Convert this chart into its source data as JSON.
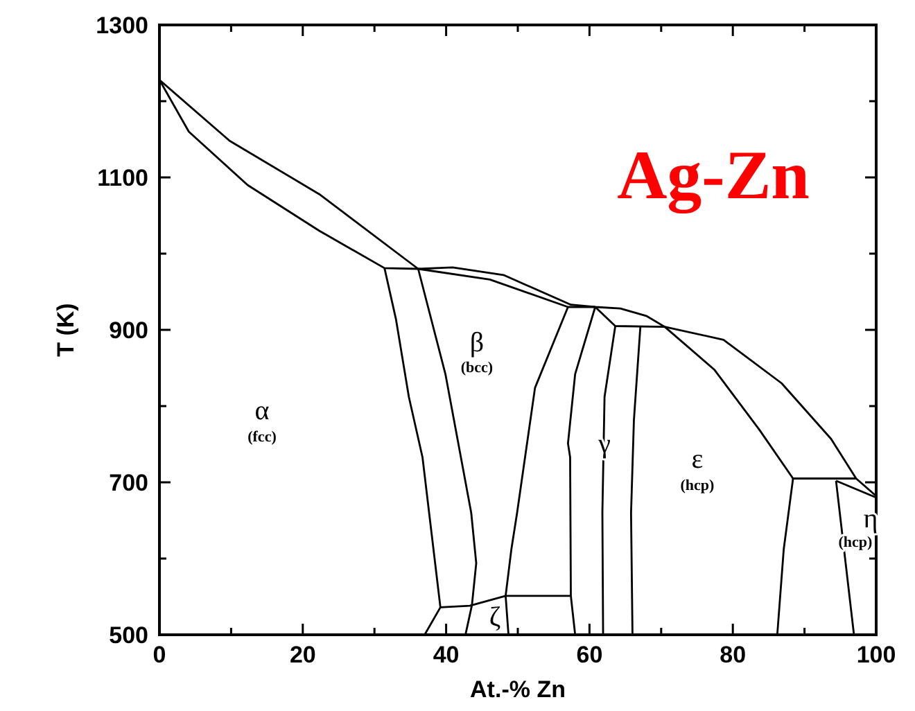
{
  "chart_data": {
    "type": "line",
    "title": "Ag-Zn",
    "xlabel": "At.-% Zn",
    "ylabel": "T (K)",
    "xlim": [
      0,
      100
    ],
    "ylim": [
      500,
      1300
    ],
    "xticks": [
      0,
      {
        "value": 10,
        "label": null
      },
      20,
      {
        "value": 30,
        "label": null
      },
      40,
      {
        "value": 50,
        "label": null
      },
      60,
      {
        "value": 70,
        "label": null
      },
      80,
      {
        "value": 90,
        "label": null
      },
      100
    ],
    "yticks": [
      500,
      {
        "value": 600,
        "label": null
      },
      700,
      {
        "value": 800,
        "label": null
      },
      900,
      {
        "value": 1000,
        "label": null
      },
      1100,
      {
        "value": 1200,
        "label": null
      },
      1300
    ],
    "series": [
      {
        "color": "#000000",
        "x": [
          0,
          9.8,
          22.3,
          36.1,
          40.9,
          48,
          57.4,
          60.8,
          64.3,
          68,
          70.5,
          78.7,
          86.8,
          93.7,
          97.2,
          100
        ],
        "values": [
          1228,
          1148,
          1078,
          980,
          982,
          972,
          933,
          930,
          928,
          918,
          904,
          887,
          830,
          757,
          705,
          682
        ]
      },
      {
        "color": "#000000",
        "x": [
          0,
          4.1,
          12.3,
          22.3,
          31.4,
          36.1,
          46.1,
          57,
          60.8,
          63.6,
          70.5,
          77.4,
          83.7,
          88.4,
          97.2
        ],
        "values": [
          1228,
          1160,
          1090,
          1030,
          981,
          980,
          966,
          930,
          930,
          905,
          904,
          848,
          769,
          705,
          705
        ]
      },
      {
        "color": "#000000",
        "x": [
          94.4,
          100
        ],
        "values": [
          702,
          680
        ]
      },
      {
        "color": "#000000",
        "x": [
          31.4,
          33,
          34.8,
          36.7,
          39.2,
          37
        ],
        "values": [
          981,
          914,
          812,
          733,
          536,
          500
        ]
      },
      {
        "color": "#000000",
        "x": [
          36.1,
          39.9,
          43.5,
          44.2,
          43.6,
          42.7
        ],
        "values": [
          980,
          842,
          660,
          594,
          539,
          500
        ]
      },
      {
        "color": "#000000",
        "x": [
          39.2,
          43.3,
          48.3,
          57.4
        ],
        "values": [
          536,
          538,
          551,
          551
        ]
      },
      {
        "color": "#000000",
        "x": [
          57,
          52.4,
          49.9,
          49.1,
          48.3,
          48.7
        ],
        "values": [
          930,
          824,
          660,
          612,
          551,
          500
        ]
      },
      {
        "color": "#000000",
        "x": [
          60.8,
          58,
          57,
          57.3,
          57.4,
          58
        ],
        "values": [
          930,
          842,
          751,
          733,
          551,
          500
        ]
      },
      {
        "color": "#000000",
        "x": [
          63.6,
          62.1,
          61.8,
          61.9
        ],
        "values": [
          905,
          812,
          660,
          500
        ]
      },
      {
        "color": "#000000",
        "x": [
          67.1,
          66.2,
          65.8,
          66
        ],
        "values": [
          904,
          782,
          660,
          500
        ]
      },
      {
        "color": "#000000",
        "x": [
          88.4,
          87.1,
          86.2
        ],
        "values": [
          705,
          612,
          500
        ]
      },
      {
        "color": "#000000",
        "x": [
          94.4,
          96.9
        ],
        "values": [
          702,
          500
        ]
      }
    ],
    "annotations": [
      "α",
      "(fcc)",
      "β",
      "(bcc)",
      "γ",
      "ε",
      "(hcp)",
      "η",
      "(hcp)",
      "ζ"
    ]
  }
}
